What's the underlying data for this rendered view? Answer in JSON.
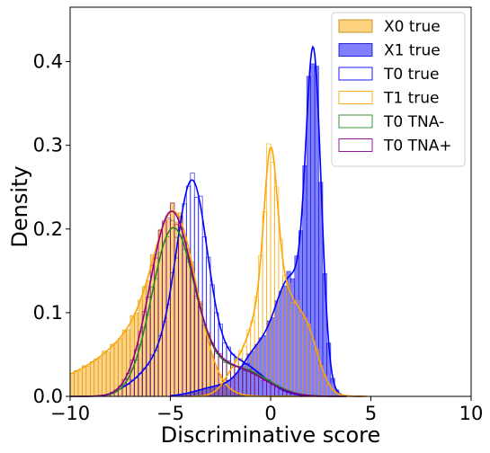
{
  "chart_data": {
    "type": "bar",
    "xlabel": "Discriminative score",
    "ylabel": "Density",
    "xlim": [
      -10,
      10
    ],
    "ylim": [
      0,
      0.465
    ],
    "xticks": [
      -10,
      -5,
      0,
      5,
      10
    ],
    "yticks": [
      0.0,
      0.1,
      0.2,
      0.3,
      0.4
    ],
    "xtick_labels": [
      "−10",
      "−5",
      "0",
      "5",
      "10"
    ],
    "ytick_labels": [
      "0.0",
      "0.1",
      "0.2",
      "0.3",
      "0.4"
    ],
    "grid": false,
    "legend_position": "top-right",
    "bin_width": 0.2,
    "series": [
      {
        "name": "X0 true",
        "style": "filled",
        "color": "#ffa500",
        "edge": "#b8860b",
        "peaks": [
          {
            "mu": -4.7,
            "sigma": 1.05,
            "amp": 0.175
          },
          {
            "mu": -6.2,
            "sigma": 1.6,
            "amp": 0.055
          },
          {
            "mu": -8.5,
            "sigma": 2.5,
            "amp": 0.028
          }
        ],
        "range": [
          -10,
          2.6
        ]
      },
      {
        "name": "X1 true",
        "style": "filled",
        "color": "#0000ff",
        "edge": "#0000cc",
        "peaks": [
          {
            "mu": 2.15,
            "sigma": 0.38,
            "amp": 0.36
          },
          {
            "mu": 1.0,
            "sigma": 0.85,
            "amp": 0.14
          },
          {
            "mu": -0.8,
            "sigma": 0.7,
            "amp": 0.04
          },
          {
            "mu": -2.5,
            "sigma": 1.1,
            "amp": 0.012
          }
        ],
        "range": [
          -5,
          4.6
        ]
      },
      {
        "name": "T0 true",
        "style": "step",
        "color": "#0000ff",
        "peaks": [
          {
            "mu": -3.9,
            "sigma": 0.75,
            "amp": 0.2
          },
          {
            "mu": -4.6,
            "sigma": 1.5,
            "amp": 0.06
          },
          {
            "mu": -1.5,
            "sigma": 1.2,
            "amp": 0.035
          }
        ],
        "range": [
          -7.5,
          2.5
        ]
      },
      {
        "name": "T1 true",
        "style": "step",
        "color": "#ffa500",
        "peaks": [
          {
            "mu": 0.0,
            "sigma": 0.32,
            "amp": 0.155
          },
          {
            "mu": 0.2,
            "sigma": 1.1,
            "amp": 0.145
          },
          {
            "mu": 1.9,
            "sigma": 0.55,
            "amp": 0.04
          },
          {
            "mu": -1.9,
            "sigma": 0.5,
            "amp": 0.012
          }
        ],
        "range": [
          -4,
          4.8
        ]
      },
      {
        "name": "T0 TNA-",
        "style": "step",
        "color": "#228b22",
        "peaks": [
          {
            "mu": -4.9,
            "sigma": 1.05,
            "amp": 0.19
          },
          {
            "mu": -3.0,
            "sigma": 1.5,
            "amp": 0.025
          },
          {
            "mu": -1.0,
            "sigma": 1.2,
            "amp": 0.02
          }
        ],
        "range": [
          -10,
          3.8
        ]
      },
      {
        "name": "T0 TNA+",
        "style": "step",
        "color": "#8b008b",
        "peaks": [
          {
            "mu": -5.0,
            "sigma": 1.05,
            "amp": 0.21
          },
          {
            "mu": -3.0,
            "sigma": 1.4,
            "amp": 0.03
          },
          {
            "mu": -1.0,
            "sigma": 1.2,
            "amp": 0.018
          }
        ],
        "range": [
          -10,
          3.8
        ]
      }
    ]
  }
}
